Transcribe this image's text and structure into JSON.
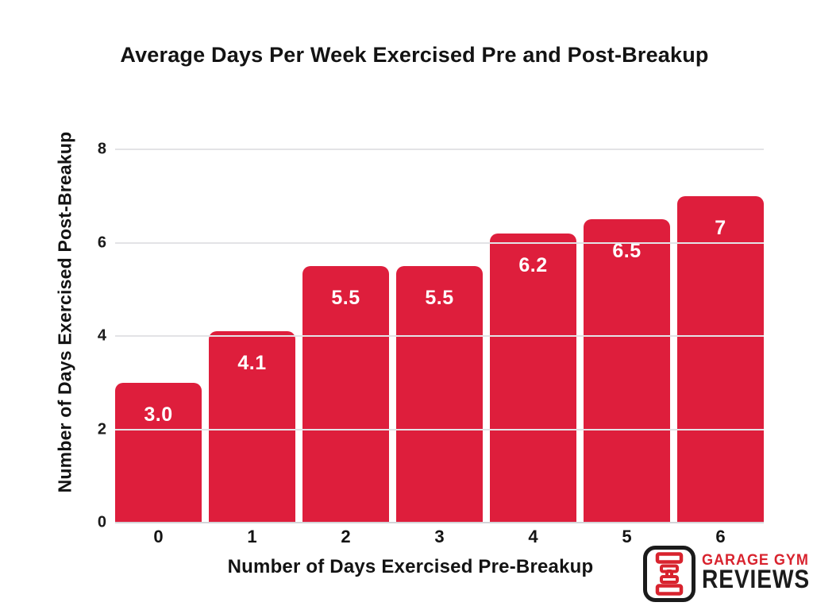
{
  "chart_data": {
    "type": "bar",
    "title": "Average Days Per Week Exercised Pre and Post-Breakup",
    "xlabel": "Number of Days Exercised Pre-Breakup",
    "ylabel": "Number of Days Exercised Post-Breakup",
    "categories": [
      "0",
      "1",
      "2",
      "3",
      "4",
      "5",
      "6"
    ],
    "values": [
      3.0,
      4.1,
      5.5,
      5.5,
      6.2,
      6.5,
      7
    ],
    "bar_labels": [
      "3.0",
      "4.1",
      "5.5",
      "5.5",
      "6.2",
      "6.5",
      "7"
    ],
    "ylim": [
      0,
      8
    ],
    "yticks": [
      0,
      2,
      4,
      6,
      8
    ],
    "grid": true,
    "legend_position": "none",
    "bar_color": "#DE1E3C",
    "bar_label_color": "#FFFFFF",
    "grid_color": "#E3E3E6",
    "baseline_color": "#D4D4D8"
  },
  "logo": {
    "line1": "GARAGE GYM",
    "line2": "REVIEWS",
    "icon": "dumbbell-icon",
    "accent_color": "#D8232E",
    "text_color": "#1B1B1B"
  }
}
